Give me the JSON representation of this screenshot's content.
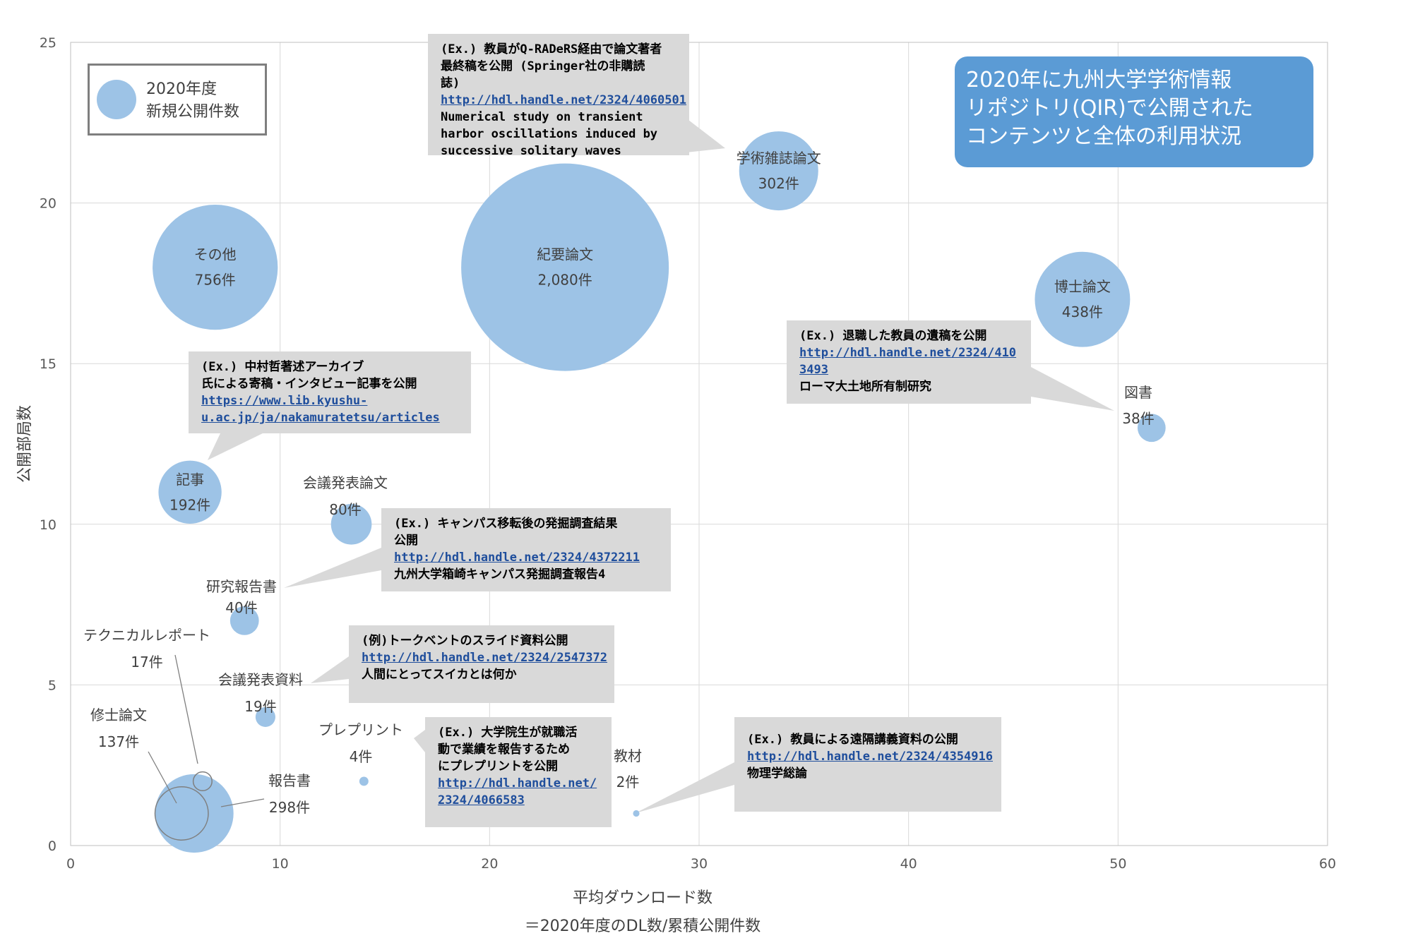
{
  "chart_data": {
    "type": "scatter",
    "subtype": "bubble",
    "xlabel_lines": [
      "平均ダウンロード数",
      "＝2020年度のDL数/累積公開件数"
    ],
    "ylabel": "公開部局数",
    "xlim": [
      0,
      60
    ],
    "ylim": [
      0,
      25
    ],
    "xticks": [
      "0",
      "10",
      "20",
      "30",
      "40",
      "50",
      "60"
    ],
    "yticks": [
      "0",
      "5",
      "10",
      "15",
      "20",
      "25"
    ],
    "grid": true,
    "legend": {
      "position": "top-left",
      "lines": [
        "2020年度",
        "新規公開件数"
      ]
    },
    "points": [
      {
        "name": "紀要論文",
        "count_label": "2,080件",
        "x": 23.6,
        "y": 18,
        "size": 2080
      },
      {
        "name": "その他",
        "count_label": "756件",
        "x": 6.9,
        "y": 18,
        "size": 756
      },
      {
        "name": "博士論文",
        "count_label": "438件",
        "x": 48.3,
        "y": 17,
        "size": 438
      },
      {
        "name": "学術雑誌論文",
        "count_label": "302件",
        "x": 33.8,
        "y": 21,
        "size": 302
      },
      {
        "name": "報告書",
        "count_label": "298件",
        "x": 5.9,
        "y": 1,
        "size": 298
      },
      {
        "name": "記事",
        "count_label": "192件",
        "x": 5.7,
        "y": 11,
        "size": 192
      },
      {
        "name": "修士論文",
        "count_label": "137件",
        "x": 5.3,
        "y": 1,
        "size": 137,
        "outline": true
      },
      {
        "name": "会議発表論文",
        "count_label": "80件",
        "x": 13.4,
        "y": 10,
        "size": 80
      },
      {
        "name": "研究報告書",
        "count_label": "40件",
        "x": 8.3,
        "y": 7,
        "size": 40
      },
      {
        "name": "図書",
        "count_label": "38件",
        "x": 51.6,
        "y": 13,
        "size": 38
      },
      {
        "name": "会議発表資料",
        "count_label": "19件",
        "x": 9.3,
        "y": 4,
        "size": 19
      },
      {
        "name": "テクニカルレポート",
        "count_label": "17件",
        "x": 6.3,
        "y": 2,
        "size": 17,
        "outline": true
      },
      {
        "name": "プレプリント",
        "count_label": "4件",
        "x": 14.0,
        "y": 2,
        "size": 4
      },
      {
        "name": "教材",
        "count_label": "2件",
        "x": 27.0,
        "y": 1,
        "size": 2
      }
    ]
  },
  "title_box": {
    "lines": [
      "2020年に九州大学学術情報",
      "リポジトリ(QIR)で公開された",
      "コンテンツと全体の利用状況"
    ],
    "color": "#5b9bd5"
  },
  "bubble_color": "#9dc3e6",
  "callouts": {
    "journal": {
      "lines": [
        "(Ex.) 教員がQ-RADeRS経由で論文著者",
        "最終稿を公開 (Springer社の非購読",
        "誌)"
      ],
      "link": "http://hdl.handle.net/2324/4060501",
      "after": [
        "Numerical study on transient",
        "harbor oscillations induced by",
        "successive solitary waves"
      ]
    },
    "thesis": {
      "lines": [
        "(Ex.) 退職した教員の遺稿を公開"
      ],
      "link_lines": [
        "http://hdl.handle.net/2324/410",
        "3493"
      ],
      "after": [
        "ローマ大土地所有制研究"
      ]
    },
    "article": {
      "lines": [
        "(Ex.) 中村哲著述アーカイブ",
        "氏による寄稿・インタビュー記事を公開"
      ],
      "link_lines": [
        "https://www.lib.kyushu-",
        "u.ac.jp/ja/nakamuratetsu/articles"
      ]
    },
    "report": {
      "lines": [
        "(Ex.) キャンパス移転後の発掘調査結果",
        "公開"
      ],
      "link": "http://hdl.handle.net/2324/4372211",
      "after": [
        "九州大学箱崎キャンパス発掘調査報告4"
      ]
    },
    "slides": {
      "lines": [
        "(例)トークベントのスライド資料公開"
      ],
      "link": "http://hdl.handle.net/2324/2547372",
      "after": [
        "人間にとってスイカとは何か"
      ]
    },
    "preprint": {
      "lines": [
        "(Ex.) 大学院生が就職活",
        "動で業績を報告するため",
        "にプレプリントを公開"
      ],
      "link_lines": [
        "http://hdl.handle.net/",
        "2324/4066583"
      ]
    },
    "material": {
      "lines": [
        "(Ex.) 教員による遠隔講義資料の公開"
      ],
      "link": "http://hdl.handle.net/2324/4354916",
      "after": [
        "物理学総論"
      ]
    }
  }
}
